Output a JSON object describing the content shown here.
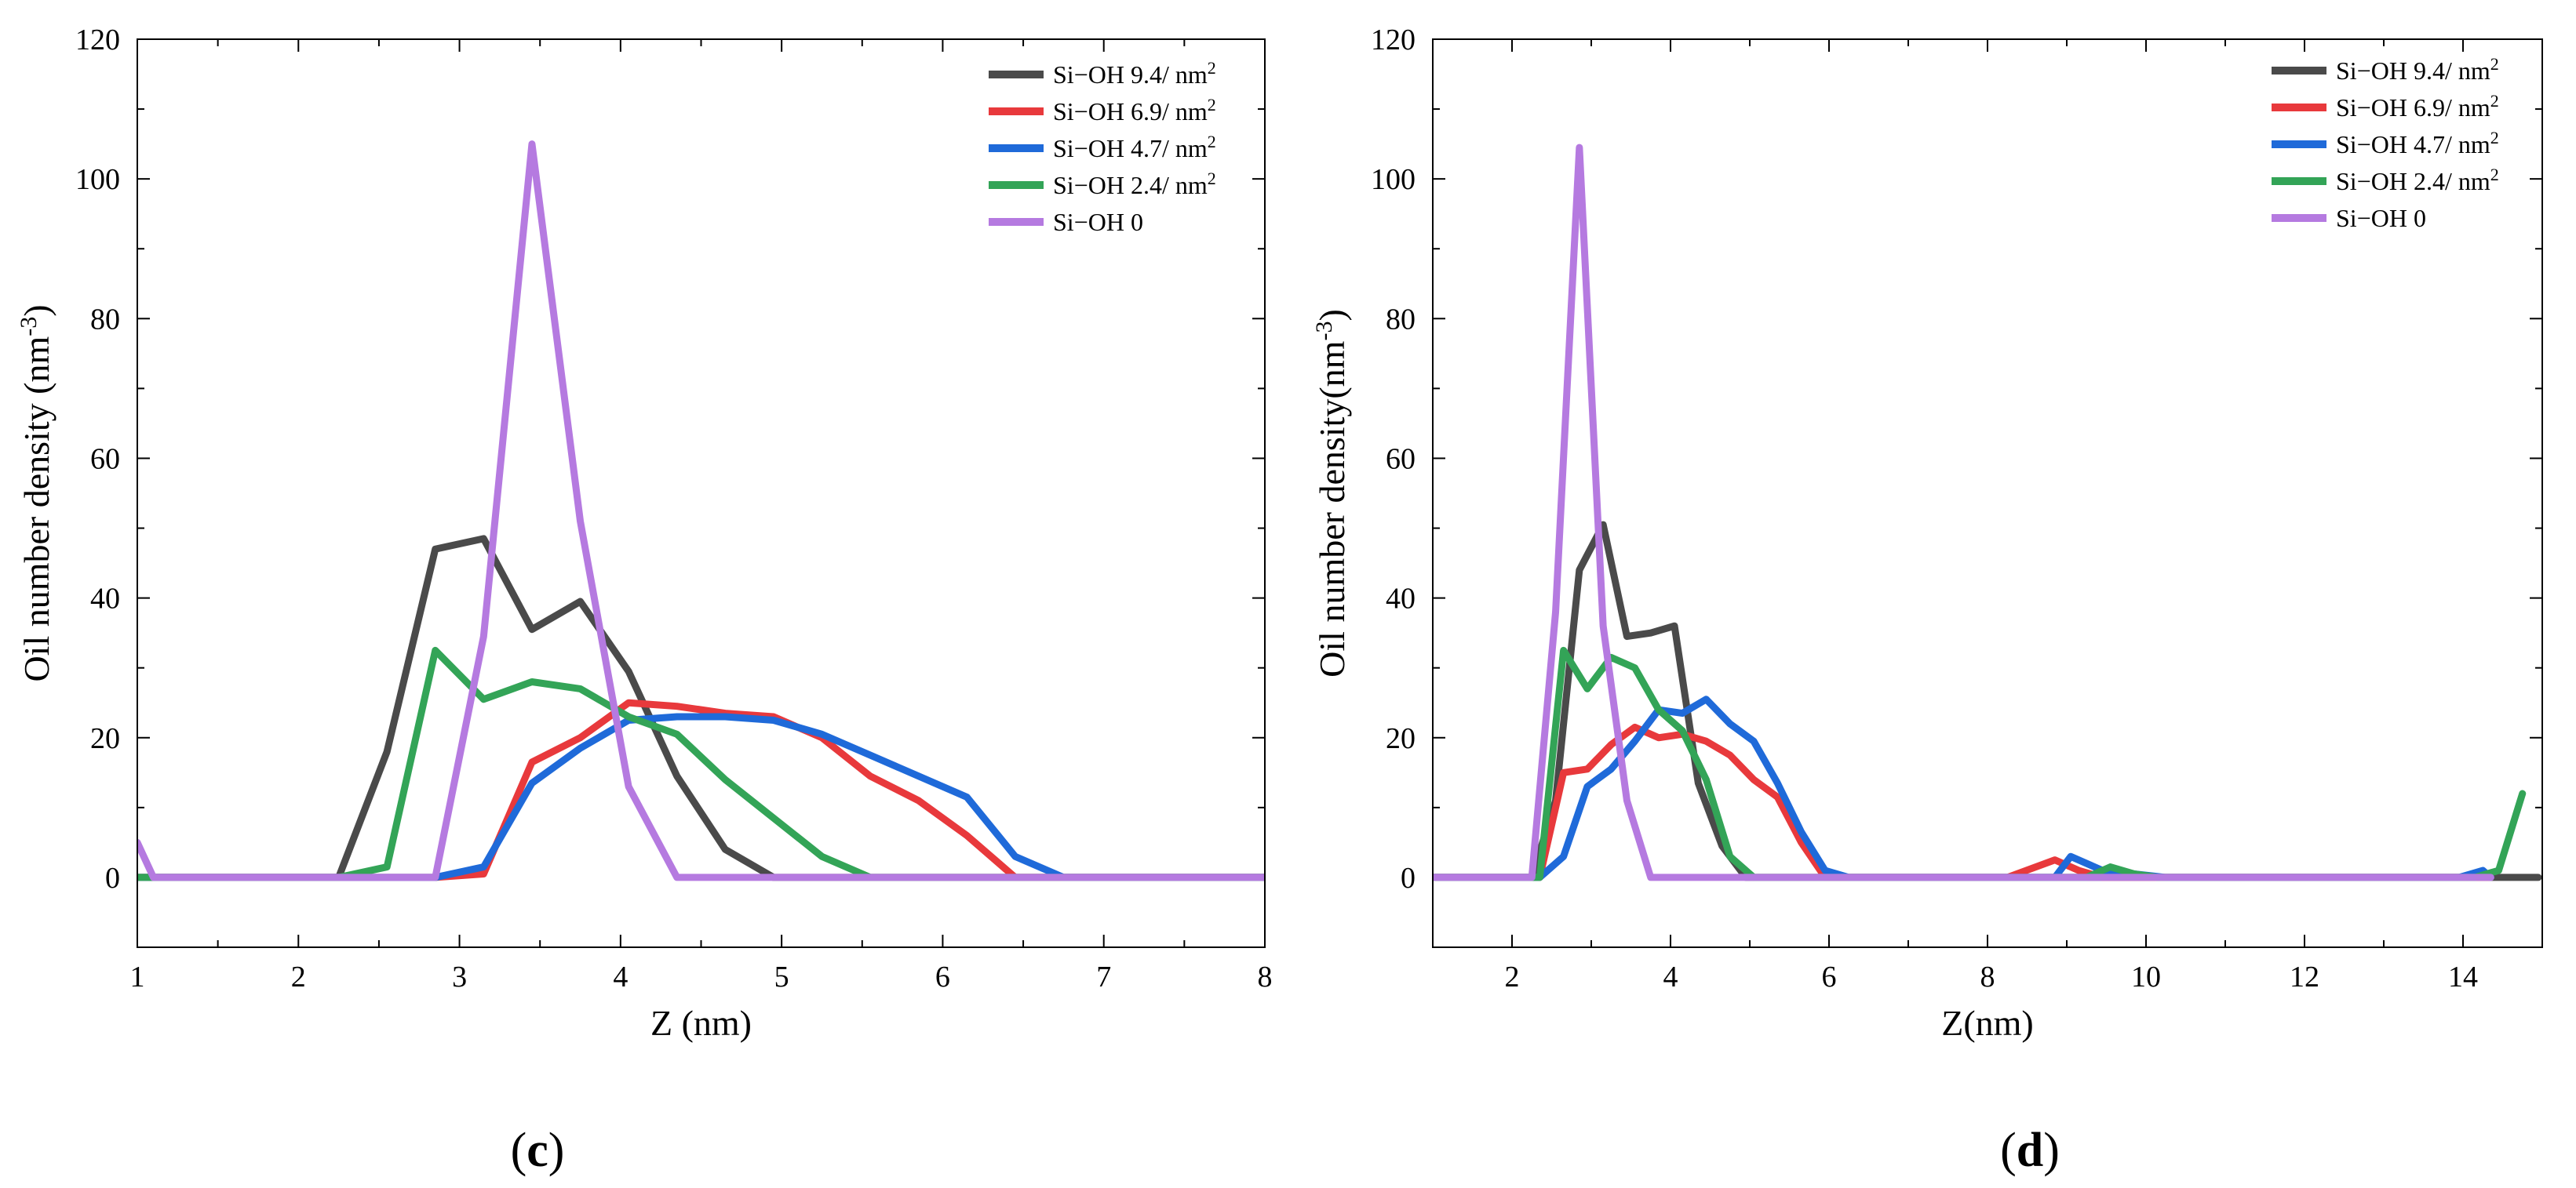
{
  "chart_data": [
    {
      "type": "line",
      "panel_label": {
        "open": "(",
        "letter": "c",
        "close": ")"
      },
      "title": "",
      "xlabel": "Z (nm)",
      "ylabel_main": "Oil number density (nm",
      "ylabel_sup": "-3",
      "ylabel_close": ")",
      "xlim": [
        1,
        8
      ],
      "ylim": [
        -10,
        120
      ],
      "xticks": [
        1,
        2,
        3,
        4,
        5,
        6,
        7,
        8
      ],
      "yticks": [
        0,
        20,
        40,
        60,
        80,
        100,
        120
      ],
      "legend_position": "top-right",
      "series": [
        {
          "name": "Si−OH 9.4/ nm",
          "name_sup": "2",
          "color": "#4a4a4a",
          "x": [
            1.0,
            2.25,
            2.55,
            2.85,
            3.15,
            3.45,
            3.75,
            4.05,
            4.35,
            4.65,
            4.95,
            5.25,
            8.0
          ],
          "y": [
            0,
            0,
            18,
            47,
            48.5,
            35.5,
            39.5,
            29.5,
            14.5,
            4,
            0,
            0,
            0
          ]
        },
        {
          "name": "Si−OH 6.9/ nm",
          "name_sup": "2",
          "color": "#e8393c",
          "x": [
            1.0,
            2.85,
            3.15,
            3.45,
            3.75,
            4.05,
            4.35,
            4.65,
            4.95,
            5.25,
            5.55,
            5.85,
            6.15,
            6.45,
            8.0
          ],
          "y": [
            0,
            0,
            0.5,
            16.5,
            20,
            25,
            24.5,
            23.5,
            23,
            20,
            14.5,
            11,
            6,
            0,
            0
          ]
        },
        {
          "name": "Si−OH 4.7/ nm",
          "name_sup": "2",
          "color": "#1f6ad9",
          "x": [
            1.0,
            2.85,
            3.15,
            3.45,
            3.75,
            4.05,
            4.35,
            4.65,
            4.95,
            5.25,
            5.55,
            5.85,
            6.15,
            6.45,
            6.75,
            8.0
          ],
          "y": [
            0,
            0,
            1.5,
            13.5,
            18.5,
            22.5,
            23,
            23,
            22.5,
            20.5,
            17.5,
            14.5,
            11.5,
            3,
            0,
            0
          ]
        },
        {
          "name": "Si−OH 2.4/ nm",
          "name_sup": "2",
          "color": "#33a457",
          "x": [
            1.0,
            2.25,
            2.55,
            2.85,
            3.15,
            3.45,
            3.75,
            4.05,
            4.35,
            4.65,
            4.95,
            5.25,
            5.55,
            8.0
          ],
          "y": [
            0,
            0,
            1.5,
            32.5,
            25.5,
            28,
            27,
            23,
            20.5,
            14,
            8.5,
            3,
            0,
            0
          ]
        },
        {
          "name": "Si−OH 0",
          "name_sup": "",
          "color": "#b57ae0",
          "x": [
            1.0,
            1.1,
            2.85,
            3.15,
            3.45,
            3.75,
            4.05,
            4.35,
            8.0
          ],
          "y": [
            5,
            0,
            0,
            34.5,
            105,
            51,
            13,
            0,
            0
          ]
        }
      ]
    },
    {
      "type": "line",
      "panel_label": {
        "open": "(",
        "letter": "d",
        "close": ")"
      },
      "title": "",
      "xlabel": "Z(nm)",
      "ylabel_main": "Oil number density(nm",
      "ylabel_sup": "-3",
      "ylabel_close": ")",
      "xlim": [
        1,
        15
      ],
      "ylim": [
        -10,
        120
      ],
      "xticks": [
        2,
        4,
        6,
        8,
        10,
        12,
        14
      ],
      "yticks": [
        0,
        20,
        40,
        60,
        80,
        100,
        120
      ],
      "legend_position": "top-right",
      "series": [
        {
          "name": "Si−OH 9.4/ nm",
          "name_sup": "2",
          "color": "#4a4a4a",
          "x": [
            1.0,
            2.25,
            2.55,
            2.85,
            3.15,
            3.45,
            3.75,
            4.05,
            4.35,
            4.65,
            4.95,
            5.25,
            14.35,
            14.95
          ],
          "y": [
            0,
            0,
            11,
            44,
            50.5,
            34.5,
            35,
            36,
            13.5,
            4.5,
            0,
            0,
            0,
            0
          ]
        },
        {
          "name": "Si−OH 6.9/ nm",
          "name_sup": "2",
          "color": "#e8393c",
          "x": [
            1.0,
            2.35,
            2.65,
            2.95,
            3.25,
            3.55,
            3.85,
            4.15,
            4.45,
            4.75,
            5.05,
            5.35,
            5.65,
            5.95,
            8.25,
            8.85,
            9.15,
            9.45,
            14.35
          ],
          "y": [
            0,
            0,
            15,
            15.5,
            19,
            21.5,
            20,
            20.5,
            19.5,
            17.5,
            14,
            11.5,
            5,
            0,
            0,
            2.5,
            1,
            0,
            0
          ]
        },
        {
          "name": "Si−OH 4.7/ nm",
          "name_sup": "2",
          "color": "#1f6ad9",
          "x": [
            1.0,
            2.35,
            2.65,
            2.95,
            3.25,
            3.55,
            3.85,
            4.15,
            4.45,
            4.75,
            5.05,
            5.35,
            5.65,
            5.95,
            6.25,
            8.85,
            9.05,
            9.45,
            10.25,
            13.95,
            14.25,
            14.35
          ],
          "y": [
            0,
            0,
            3,
            13,
            15.5,
            19.5,
            24,
            23.5,
            25.5,
            22,
            19.5,
            13.5,
            6.5,
            1,
            0,
            0,
            3,
            1,
            0,
            0,
            1,
            0
          ]
        },
        {
          "name": "Si−OH 2.4/ nm",
          "name_sup": "2",
          "color": "#33a457",
          "x": [
            1.0,
            2.35,
            2.65,
            2.95,
            3.25,
            3.55,
            3.85,
            4.15,
            4.45,
            4.75,
            5.05,
            9.25,
            9.55,
            9.85,
            10.15,
            14.15,
            14.45,
            14.75
          ],
          "y": [
            0,
            0,
            32.5,
            27,
            31.5,
            30,
            24,
            21,
            14,
            3,
            0,
            0,
            1.5,
            0.5,
            0,
            0,
            1,
            12
          ]
        },
        {
          "name": "Si−OH 0",
          "name_sup": "",
          "color": "#b57ae0",
          "x": [
            1.0,
            2.25,
            2.55,
            2.85,
            3.15,
            3.45,
            3.75,
            14.35
          ],
          "y": [
            0,
            0,
            38,
            104.5,
            36,
            11,
            0,
            0
          ]
        }
      ]
    }
  ]
}
